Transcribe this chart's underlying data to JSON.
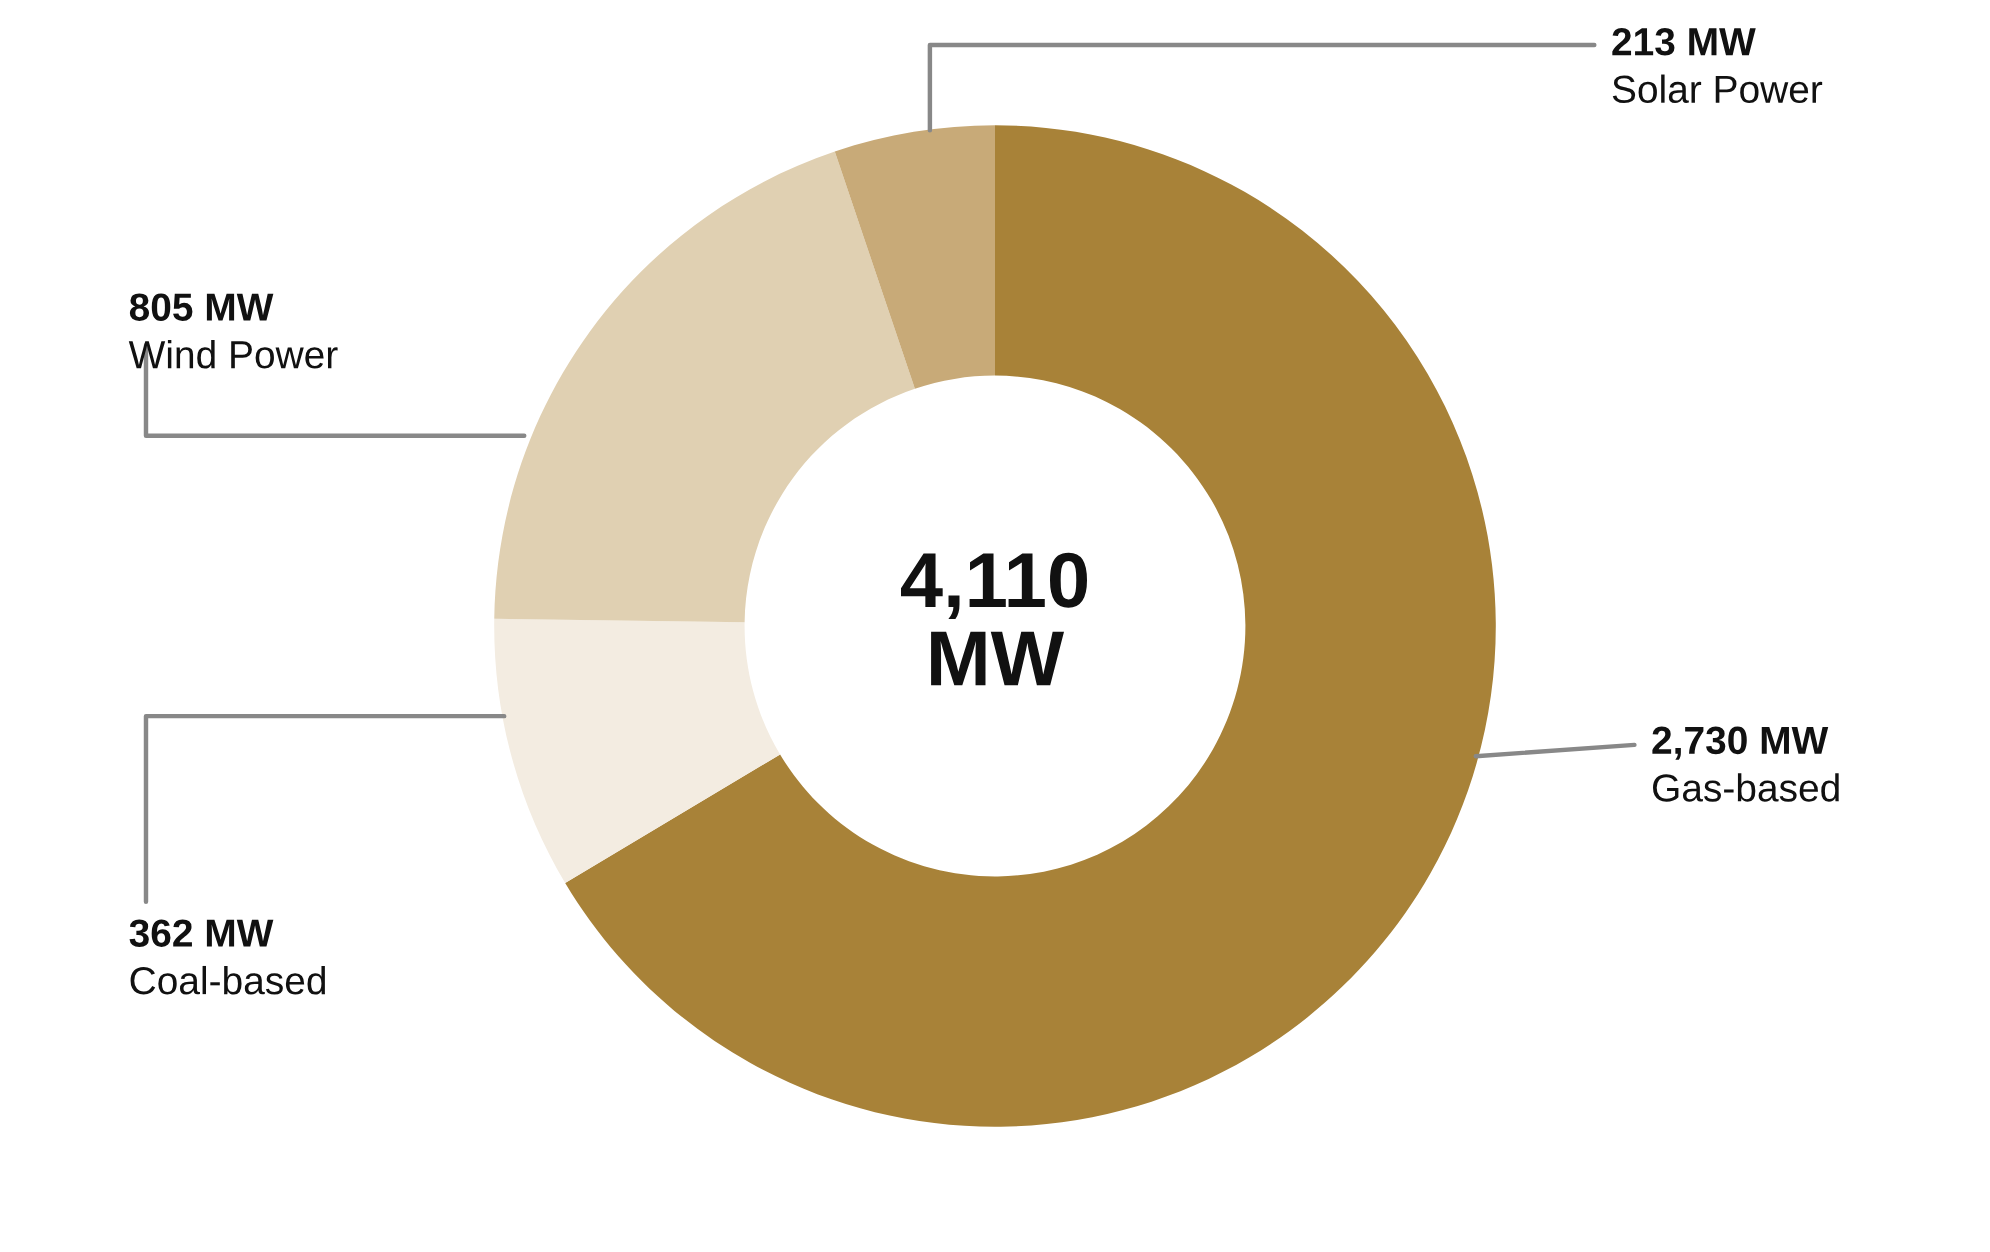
{
  "chart_data": {
    "type": "donut",
    "categories": [
      "Gas-based",
      "Coal-based",
      "Wind Power",
      "Solar Power"
    ],
    "values": [
      2730,
      362,
      805,
      213
    ],
    "value_labels": [
      "2,730 MW",
      "362 MW",
      "805 MW",
      "213 MW"
    ],
    "colors": [
      "#a88238",
      "#f3ece1",
      "#e0d0b2",
      "#c8aa78"
    ],
    "annotations": [
      "4,110\nMW"
    ],
    "legend": false
  }
}
